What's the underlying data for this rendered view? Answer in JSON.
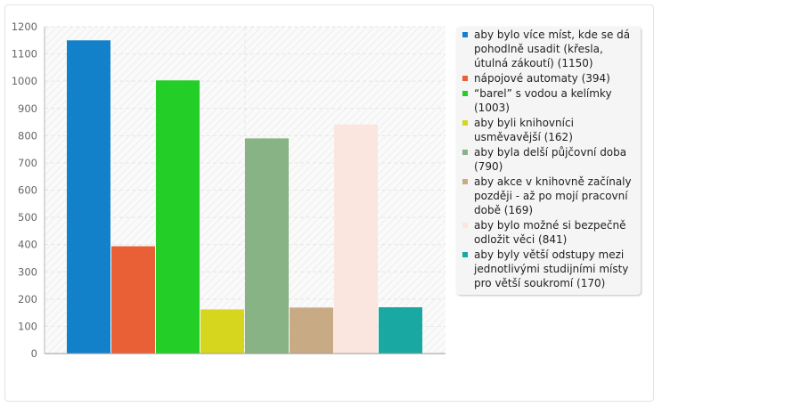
{
  "chart_data": {
    "type": "bar",
    "title": "",
    "xlabel": "",
    "ylabel": "",
    "ylim": [
      0,
      1200
    ],
    "yticks": [
      0,
      100,
      200,
      300,
      400,
      500,
      600,
      700,
      800,
      900,
      1000,
      1100,
      1200
    ],
    "grid": true,
    "legend_position": "right",
    "series": [
      {
        "name": "aby bylo více míst, kde se dá pohodlně usadit (křesla, útulná zákoutí) (1150)",
        "value": 1150,
        "color": "#1281c9"
      },
      {
        "name": "nápojové automaty (394)",
        "value": 394,
        "color": "#e95f36"
      },
      {
        "name": "“barel” s vodou a kelímky (1003)",
        "value": 1003,
        "color": "#23cf27"
      },
      {
        "name": "aby byli knihovníci usměvavější (162)",
        "value": 162,
        "color": "#d5d61d"
      },
      {
        "name": "aby byla delší půjčovní doba (790)",
        "value": 790,
        "color": "#88b384"
      },
      {
        "name": "aby akce v knihovně začínaly později - až po mojí pracovní době (169)",
        "value": 169,
        "color": "#c8ab85"
      },
      {
        "name": "aby bylo možné si bezpečně odložit věci (841)",
        "value": 841,
        "color": "#fae6df"
      },
      {
        "name": "aby byly větší odstupy mezi jednotlivými studijními místy pro větší soukromí (170)",
        "value": 170,
        "color": "#19a8a2"
      }
    ]
  }
}
